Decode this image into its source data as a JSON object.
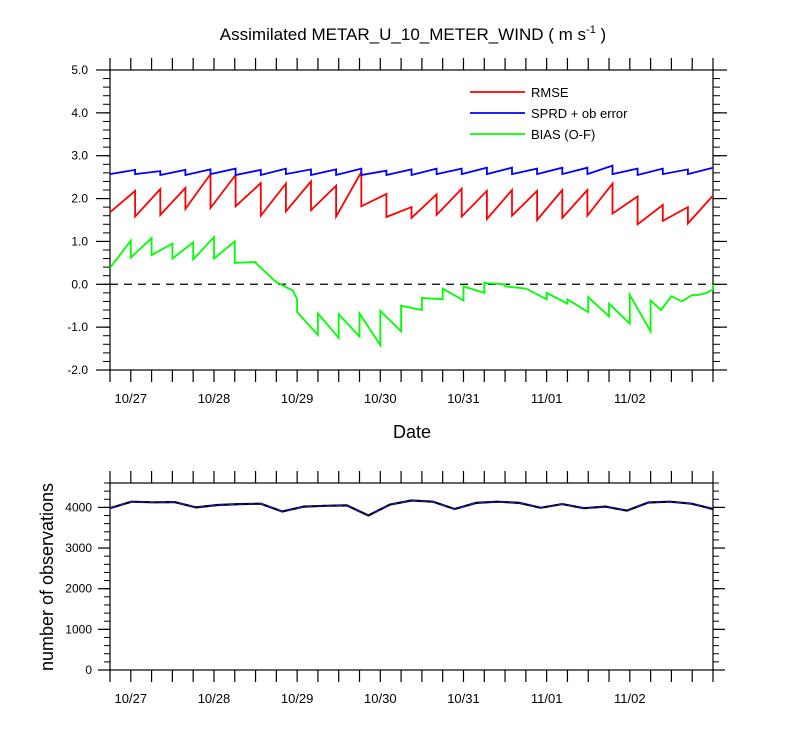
{
  "chart_data": [
    {
      "type": "line",
      "title": "Assimilated METAR_U_10_METER_WIND",
      "title_units_base": "( m s",
      "title_units_sup": "-1",
      "title_units_end": " )",
      "xlabel": "Date",
      "ylabel": "",
      "ylim": [
        -2.0,
        5.0
      ],
      "yticks": [
        "-2.0",
        "-1.0",
        "0.0",
        "1.0",
        "2.0",
        "3.0",
        "4.0",
        "5.0"
      ],
      "xtick_labels": [
        "10/27",
        "10/28",
        "10/29",
        "10/30",
        "10/31",
        "11/01",
        "11/02"
      ],
      "zero_line": "dashed",
      "legend_position": "top-right",
      "series": [
        {
          "name": "RMSE",
          "color": "#ff0000",
          "values": [
            1.68,
            2.18,
            1.58,
            2.22,
            1.62,
            2.25,
            1.76,
            2.57,
            1.78,
            2.55,
            1.82,
            2.36,
            1.6,
            2.35,
            1.7,
            2.4,
            1.73,
            2.3,
            1.58,
            2.62,
            1.82,
            2.11,
            1.57,
            1.8,
            1.55,
            2.1,
            1.62,
            2.23,
            1.58,
            2.18,
            1.52,
            2.2,
            1.6,
            2.18,
            1.5,
            2.2,
            1.55,
            2.2,
            1.6,
            2.35,
            1.65,
            2.05,
            1.4,
            1.85,
            1.48,
            1.8,
            1.42,
            2.07
          ]
        },
        {
          "name": "SPRD + ob error",
          "color": "#0000ff",
          "values": [
            2.57,
            2.67,
            2.57,
            2.64,
            2.55,
            2.67,
            2.55,
            2.68,
            2.57,
            2.7,
            2.55,
            2.67,
            2.55,
            2.7,
            2.57,
            2.68,
            2.55,
            2.68,
            2.55,
            2.7,
            2.55,
            2.65,
            2.55,
            2.68,
            2.55,
            2.7,
            2.57,
            2.7,
            2.57,
            2.72,
            2.57,
            2.72,
            2.57,
            2.7,
            2.57,
            2.72,
            2.57,
            2.72,
            2.57,
            2.77,
            2.57,
            2.7,
            2.55,
            2.7,
            2.57,
            2.68,
            2.57,
            2.72
          ]
        },
        {
          "name": "BIAS (O-F)",
          "color": "#00ff00",
          "values": [
            0.38,
            1.02,
            0.62,
            1.08,
            0.68,
            0.95,
            0.6,
            0.98,
            0.58,
            1.1,
            0.6,
            1.0,
            0.5,
            0.52,
            0.5,
            0.05,
            -0.15,
            -0.35,
            -0.65,
            -1.18,
            -0.68,
            -1.25,
            -0.7,
            -1.22,
            -0.68,
            -1.42,
            -0.62,
            -1.1,
            -0.5,
            -0.6,
            -0.32,
            -0.35,
            -0.1,
            -0.38,
            -0.05,
            -0.2,
            0.03,
            0.0,
            -0.05,
            -0.1,
            -0.1,
            -0.35,
            -0.2,
            -0.45,
            -0.35,
            -0.65,
            -0.3,
            -0.75,
            -0.45,
            -0.92,
            -0.25,
            -1.1,
            -0.38,
            -0.6,
            -0.28,
            -0.4,
            -0.25,
            -0.25,
            -0.2,
            -0.12,
            -0.05,
            0.0
          ],
          "x_index": [
            0,
            1,
            1,
            2,
            2,
            3,
            3,
            4,
            4,
            5,
            5,
            6,
            6,
            7,
            7,
            8,
            8.8,
            9,
            9,
            10,
            10,
            11,
            11,
            12,
            12,
            13,
            13,
            14,
            14,
            15,
            15,
            16,
            16,
            17,
            17,
            18,
            18,
            19,
            19,
            20,
            20,
            21,
            21,
            22,
            22,
            23,
            23,
            24,
            24,
            25,
            25,
            26,
            26,
            26.5,
            27,
            27.5,
            28,
            28.3,
            28.7,
            29,
            29,
            29
          ]
        }
      ]
    },
    {
      "type": "line",
      "title": "",
      "xlabel": "",
      "ylabel": "number of observations",
      "ylim": [
        0,
        4600
      ],
      "yticks": [
        "0",
        "1000",
        "2000",
        "3000",
        "4000"
      ],
      "xtick_labels": [
        "10/27",
        "10/28",
        "10/29",
        "10/30",
        "10/31",
        "11/01",
        "11/02"
      ],
      "series": [
        {
          "name": "",
          "color": "#000000",
          "values": [
            3980,
            4140,
            4125,
            4130,
            4000,
            4060,
            4080,
            4090,
            3900,
            4020,
            4040,
            4050,
            3800,
            4070,
            4170,
            4140,
            3960,
            4110,
            4140,
            4110,
            3990,
            4080,
            3980,
            4020,
            3920,
            4120,
            4140,
            4090,
            3960
          ]
        }
      ]
    }
  ]
}
